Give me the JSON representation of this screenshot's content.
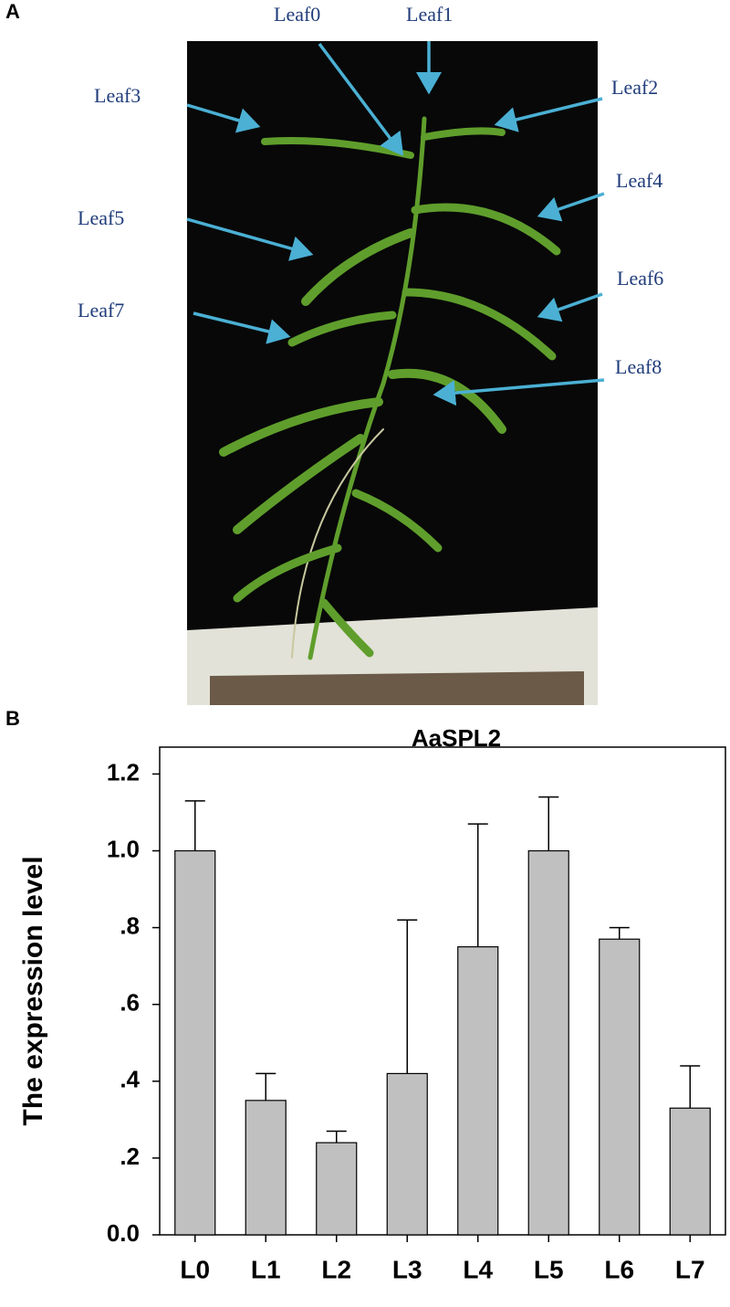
{
  "panel_labels": [
    "A",
    "B"
  ],
  "photo": {
    "labels": [
      "Leaf0",
      "Leaf1",
      "Leaf2",
      "Leaf3",
      "Leaf4",
      "Leaf5",
      "Leaf6",
      "Leaf7",
      "Leaf8"
    ]
  },
  "chart_data": {
    "type": "bar",
    "title": "AaSPL2",
    "ylabel": "The expression level",
    "categories": [
      "L0",
      "L1",
      "L2",
      "L3",
      "L4",
      "L5",
      "L6",
      "L7"
    ],
    "values": [
      1.0,
      0.35,
      0.24,
      0.42,
      0.75,
      1.0,
      0.77,
      0.33
    ],
    "errors": [
      0.13,
      0.07,
      0.03,
      0.4,
      0.32,
      0.14,
      0.03,
      0.11
    ],
    "color": "#c0c0c0",
    "ylim": [
      0,
      1.27
    ],
    "yticks": [
      {
        "value": 0,
        "label": "0.0"
      },
      {
        "value": 0.2,
        "label": ".2"
      },
      {
        "value": 0.4,
        "label": ".4"
      },
      {
        "value": 0.6,
        "label": ".6"
      },
      {
        "value": 0.8,
        "label": ".8"
      },
      {
        "value": 1.0,
        "label": "1.0"
      },
      1.2
    ]
  }
}
